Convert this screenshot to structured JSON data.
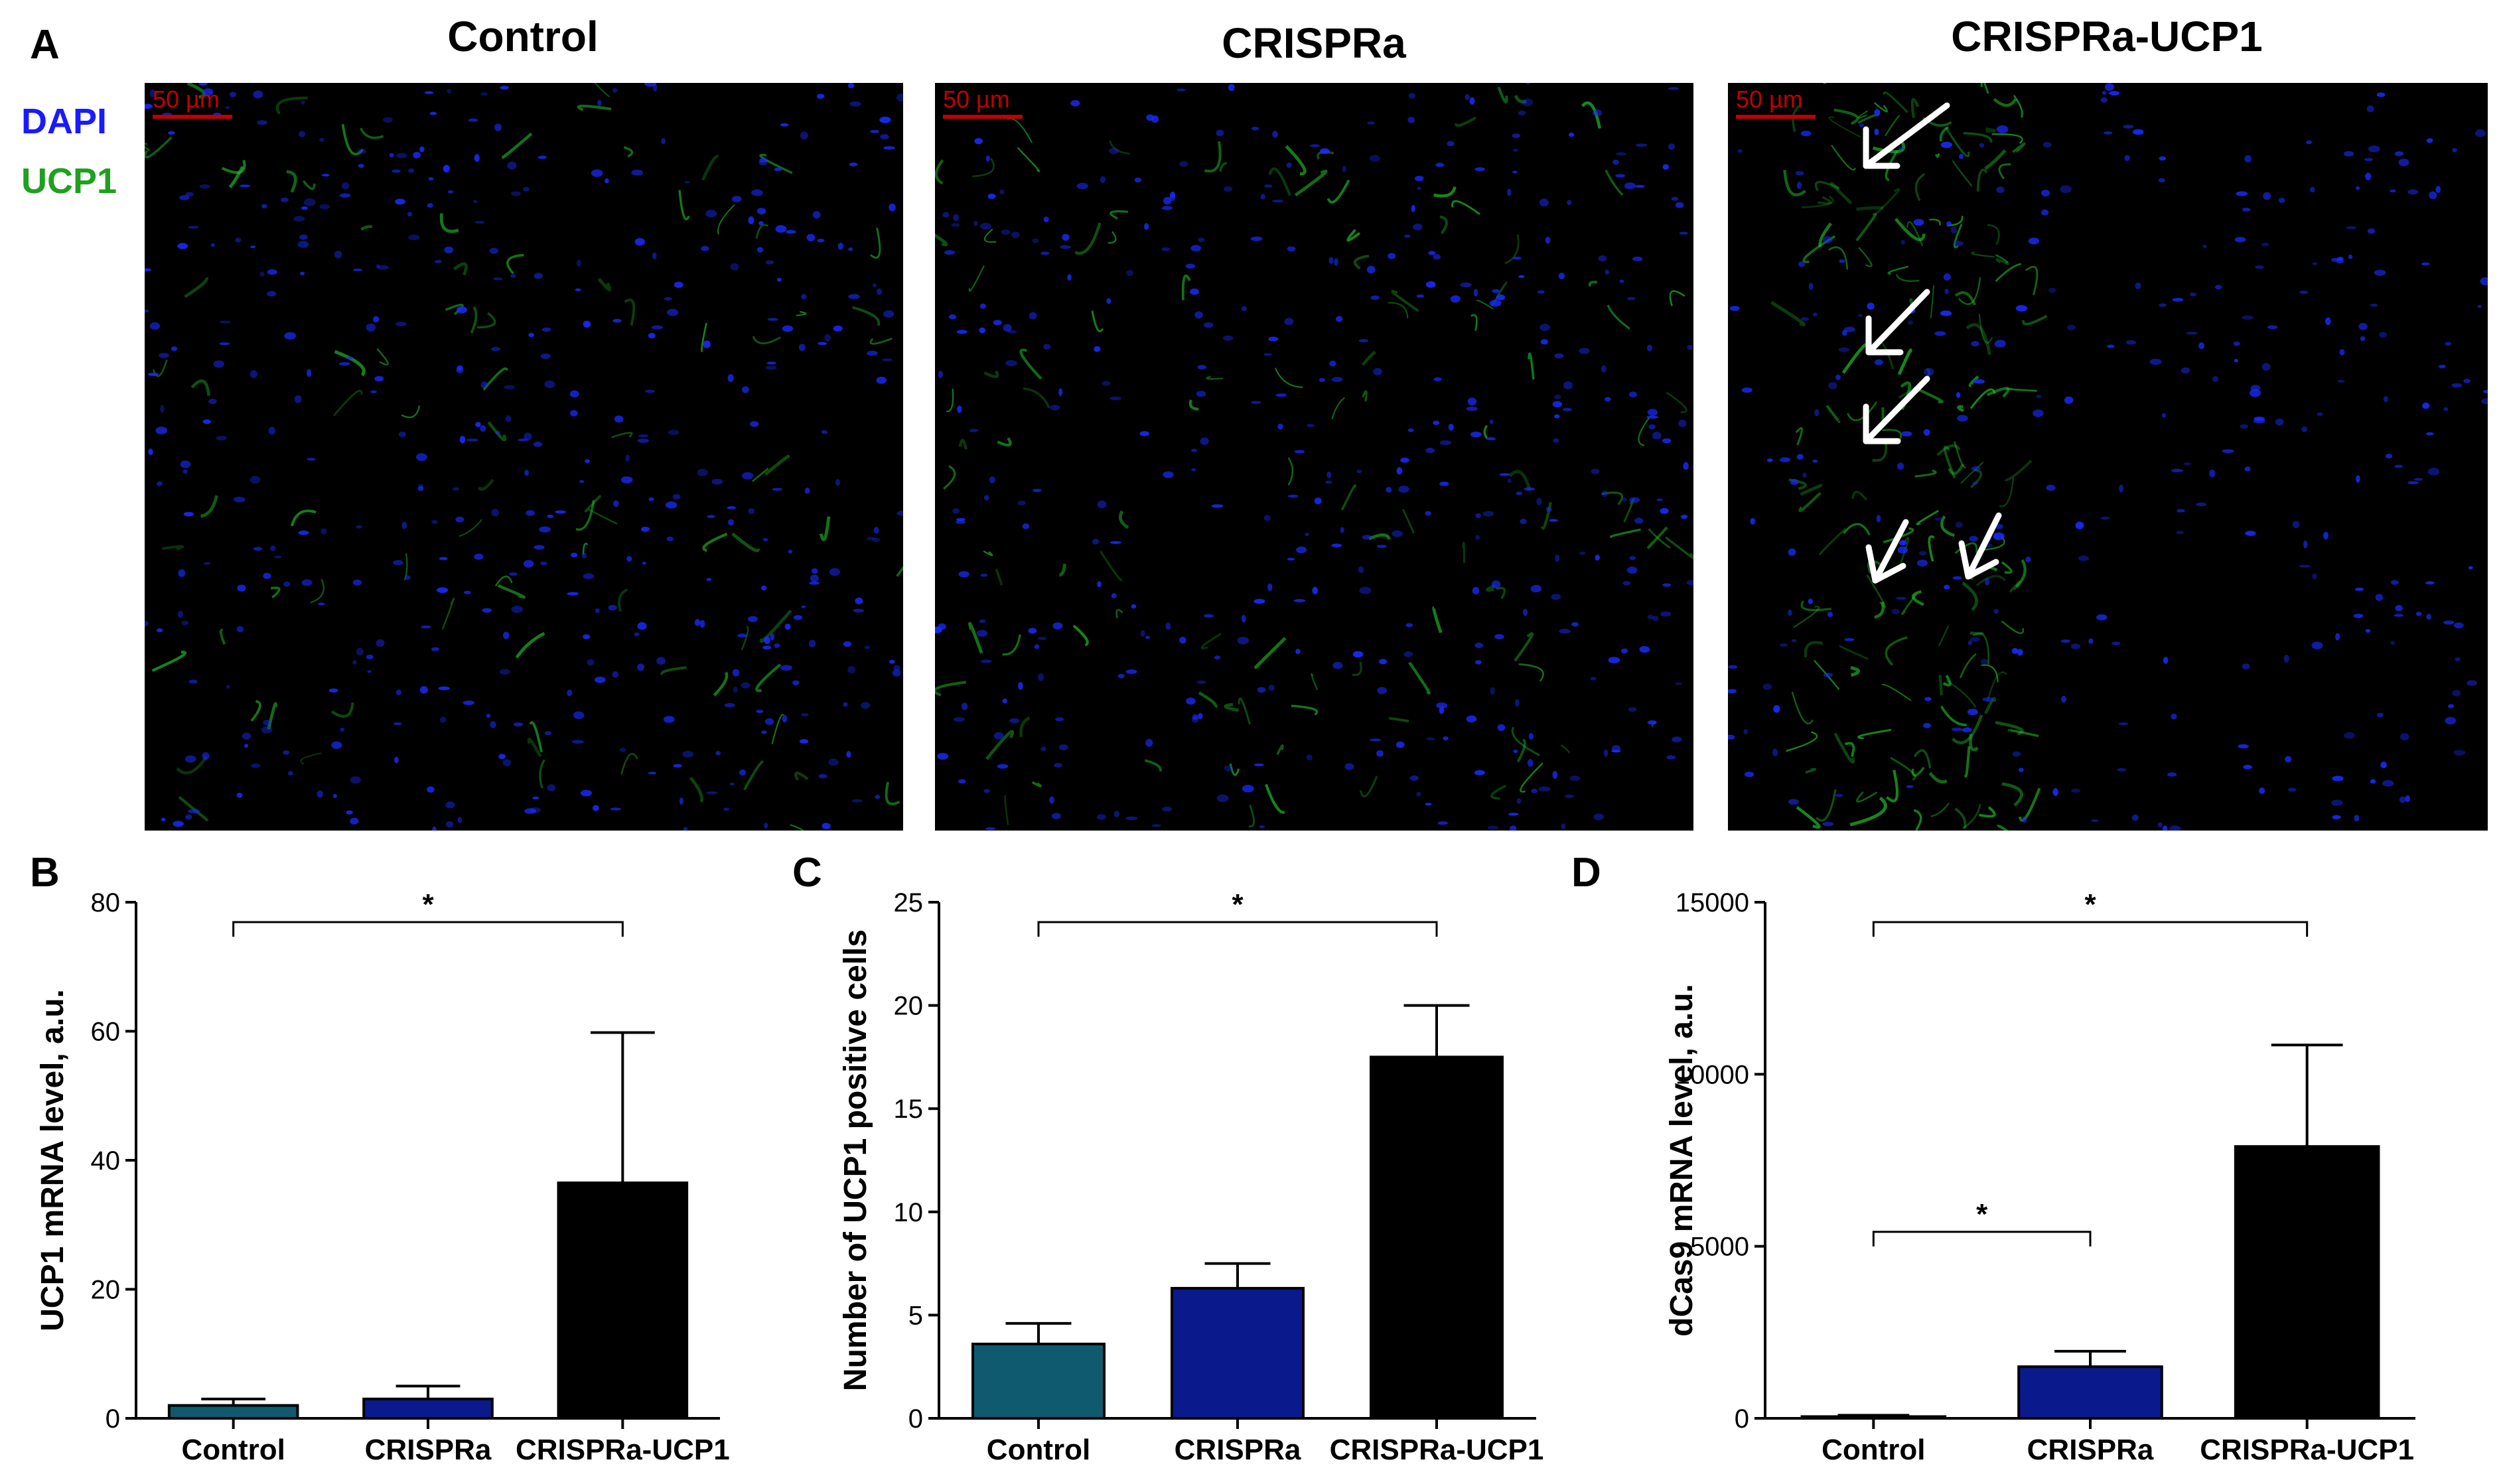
{
  "panel_labels": {
    "a": "A",
    "b": "B",
    "c": "C",
    "d": "D"
  },
  "images": {
    "legend": {
      "dapi": "DAPI",
      "ucp1": "UCP1"
    },
    "scale_bar_label": "50 µm",
    "panels": [
      {
        "title": "Control"
      },
      {
        "title": "CRISPRa"
      },
      {
        "title": "CRISPRa-UCP1"
      }
    ],
    "colors": {
      "dapi": "#1a2cff",
      "ucp1": "#22c02a",
      "scale": "#c00000"
    }
  },
  "chart_data": [
    {
      "type": "bar",
      "panel": "B",
      "categories": [
        "Control",
        "CRISPRa",
        "CRISPRa-UCP1"
      ],
      "values": [
        2,
        3,
        36.5
      ],
      "errors": [
        1,
        2,
        23.3
      ],
      "colors": [
        "#0f5a6e",
        "#0a1a8c",
        "#000000"
      ],
      "ylabel": "UCP1 mRNA level, a.u.",
      "ylim": [
        0,
        80
      ],
      "yticks": [
        0,
        20,
        40,
        60,
        80
      ],
      "significance": [
        {
          "from": 0,
          "to": 2,
          "label": "*"
        }
      ]
    },
    {
      "type": "bar",
      "panel": "C",
      "categories": [
        "Control",
        "CRISPRa",
        "CRISPRa-UCP1"
      ],
      "values": [
        3.6,
        6.3,
        17.5
      ],
      "errors": [
        1.0,
        1.2,
        2.5
      ],
      "colors": [
        "#0f5a6e",
        "#0a1a8c",
        "#000000"
      ],
      "ylabel": "Number of UCP1 positive cells",
      "ylim": [
        0,
        25
      ],
      "yticks": [
        0,
        5,
        10,
        15,
        20,
        25
      ],
      "significance": [
        {
          "from": 0,
          "to": 2,
          "label": "*"
        }
      ]
    },
    {
      "type": "bar",
      "panel": "D",
      "categories": [
        "Control",
        "CRISPRa",
        "CRISPRa-UCP1"
      ],
      "values": [
        50,
        1500,
        7900
      ],
      "errors": [
        40,
        450,
        2950
      ],
      "colors": [
        "#0f5a6e",
        "#0a1a8c",
        "#000000"
      ],
      "ylabel": "dCas9 mRNA level, a.u.",
      "ylim": [
        0,
        15000
      ],
      "yticks": [
        0,
        5000,
        10000,
        15000
      ],
      "significance": [
        {
          "from": 0,
          "to": 2,
          "label": "*"
        },
        {
          "from": 0,
          "to": 1,
          "label": "*"
        }
      ]
    }
  ]
}
